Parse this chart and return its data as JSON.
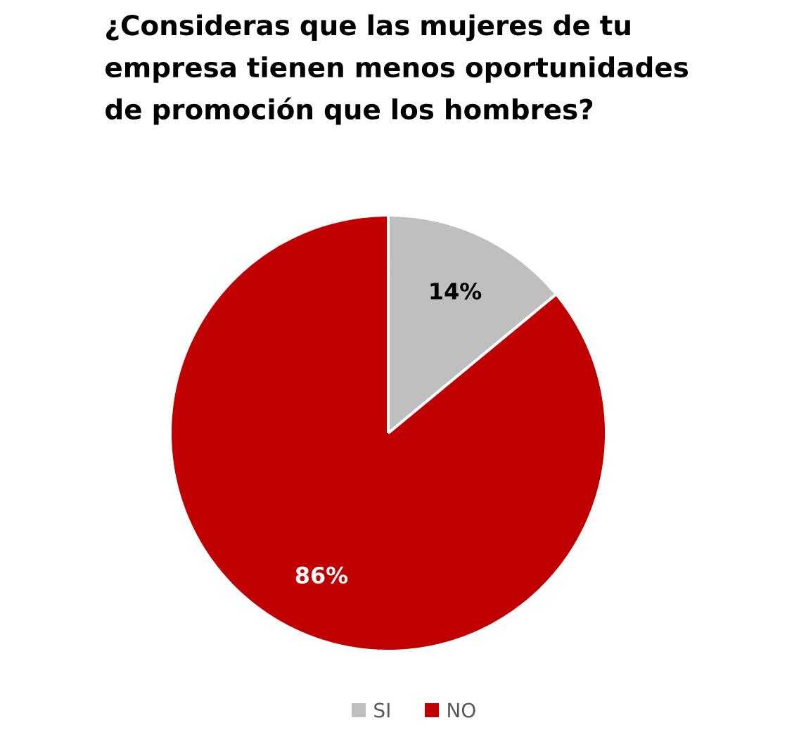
{
  "chart_data": {
    "type": "pie",
    "title": "¿Consideras que las mujeres de tu empresa tienen menos oportunidades de promoción que los hombres?",
    "categories": [
      "SI",
      "NO"
    ],
    "values": [
      14,
      86
    ],
    "colors": [
      "#bfbfbf",
      "#c00000"
    ],
    "value_labels": [
      "14%",
      "86%"
    ],
    "legend": "bottom"
  }
}
